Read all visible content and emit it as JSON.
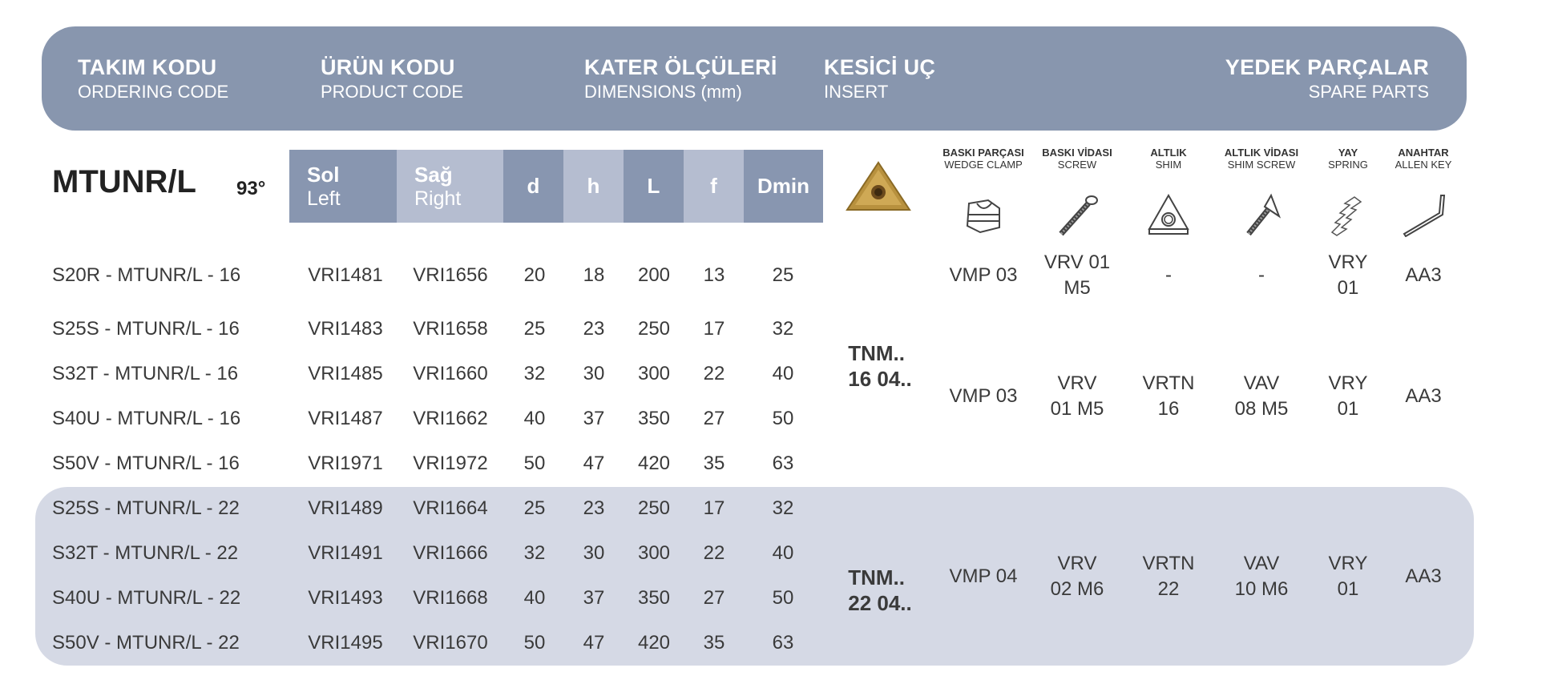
{
  "header": {
    "ordering": {
      "title": "TAKIM KODU",
      "sub": "ORDERING CODE"
    },
    "product": {
      "title": "ÜRÜN KODU",
      "sub": "PRODUCT CODE"
    },
    "dimensions": {
      "title": "KATER ÖLÇÜLERİ",
      "sub": "DIMENSIONS (mm)"
    },
    "insert": {
      "title": "KESİCİ UÇ",
      "sub": "INSERT"
    },
    "spare": {
      "title": "YEDEK PARÇALAR",
      "sub": "SPARE PARTS"
    }
  },
  "tool": {
    "name": "MTUNR/L",
    "angle": "93°"
  },
  "columns": {
    "left": {
      "tr": "Sol",
      "en": "Left"
    },
    "right": {
      "tr": "Sağ",
      "en": "Right"
    },
    "d": "d",
    "h": "h",
    "L": "L",
    "f": "f",
    "dmin": "Dmin"
  },
  "spare_columns": [
    {
      "tr": "BASKI PARÇASI",
      "en": "WEDGE CLAMP",
      "icon": "wedge-clamp-icon"
    },
    {
      "tr": "BASKI VİDASI",
      "en": "SCREW",
      "icon": "screw-icon"
    },
    {
      "tr": "ALTLIK",
      "en": "SHIM",
      "icon": "shim-icon"
    },
    {
      "tr": "ALTLIK VİDASI",
      "en": "SHIM SCREW",
      "icon": "shim-screw-icon"
    },
    {
      "tr": "YAY",
      "en": "SPRING",
      "icon": "spring-icon"
    },
    {
      "tr": "ANAHTAR",
      "en": "ALLEN KEY",
      "icon": "allen-key-icon"
    }
  ],
  "rows": [
    {
      "code": "S20R - MTUNR/L - 16",
      "left": "VRI1481",
      "right": "VRI1656",
      "d": "20",
      "h": "18",
      "L": "200",
      "f": "13",
      "dmin": "25"
    },
    {
      "code": "S25S - MTUNR/L - 16",
      "left": "VRI1483",
      "right": "VRI1658",
      "d": "25",
      "h": "23",
      "L": "250",
      "f": "17",
      "dmin": "32"
    },
    {
      "code": "S32T - MTUNR/L - 16",
      "left": "VRI1485",
      "right": "VRI1660",
      "d": "32",
      "h": "30",
      "L": "300",
      "f": "22",
      "dmin": "40"
    },
    {
      "code": "S40U - MTUNR/L - 16",
      "left": "VRI1487",
      "right": "VRI1662",
      "d": "40",
      "h": "37",
      "L": "350",
      "f": "27",
      "dmin": "50"
    },
    {
      "code": "S50V - MTUNR/L - 16",
      "left": "VRI1971",
      "right": "VRI1972",
      "d": "50",
      "h": "47",
      "L": "420",
      "f": "35",
      "dmin": "63"
    },
    {
      "code": "S25S - MTUNR/L - 22",
      "left": "VRI1489",
      "right": "VRI1664",
      "d": "25",
      "h": "23",
      "L": "250",
      "f": "17",
      "dmin": "32"
    },
    {
      "code": "S32T - MTUNR/L - 22",
      "left": "VRI1491",
      "right": "VRI1666",
      "d": "32",
      "h": "30",
      "L": "300",
      "f": "22",
      "dmin": "40"
    },
    {
      "code": "S40U - MTUNR/L - 22",
      "left": "VRI1493",
      "right": "VRI1668",
      "d": "40",
      "h": "37",
      "L": "350",
      "f": "27",
      "dmin": "50"
    },
    {
      "code": "S50V - MTUNR/L - 22",
      "left": "VRI1495",
      "right": "VRI1670",
      "d": "50",
      "h": "47",
      "L": "420",
      "f": "35",
      "dmin": "63"
    }
  ],
  "inserts": [
    {
      "l1": "TNM..",
      "l2": "16 04.."
    },
    {
      "l1": "TNM..",
      "l2": "22 04.."
    }
  ],
  "spare_sets": [
    {
      "clamp": "VMP 03",
      "screw": [
        "VRV 01",
        "M5"
      ],
      "shim": "-",
      "shim_screw": "-",
      "spring": [
        "VRY",
        "01"
      ],
      "key": "AA3"
    },
    {
      "clamp": "VMP 03",
      "screw": [
        "VRV",
        "01 M5"
      ],
      "shim": [
        "VRTN",
        "16"
      ],
      "shim_screw": [
        "VAV",
        "08 M5"
      ],
      "spring": [
        "VRY",
        "01"
      ],
      "key": "AA3"
    },
    {
      "clamp": "VMP 04",
      "screw": [
        "VRV",
        "02 M6"
      ],
      "shim": [
        "VRTN",
        "22"
      ],
      "shim_screw": [
        "VAV",
        "10 M6"
      ],
      "spring": [
        "VRY",
        "01"
      ],
      "key": "AA3"
    }
  ],
  "colors": {
    "banner": "#8896ae",
    "header_dark": "#8896b0",
    "header_light": "#b5bdd0",
    "band": "#d5d9e5",
    "insert_gold": "#b8913e"
  }
}
